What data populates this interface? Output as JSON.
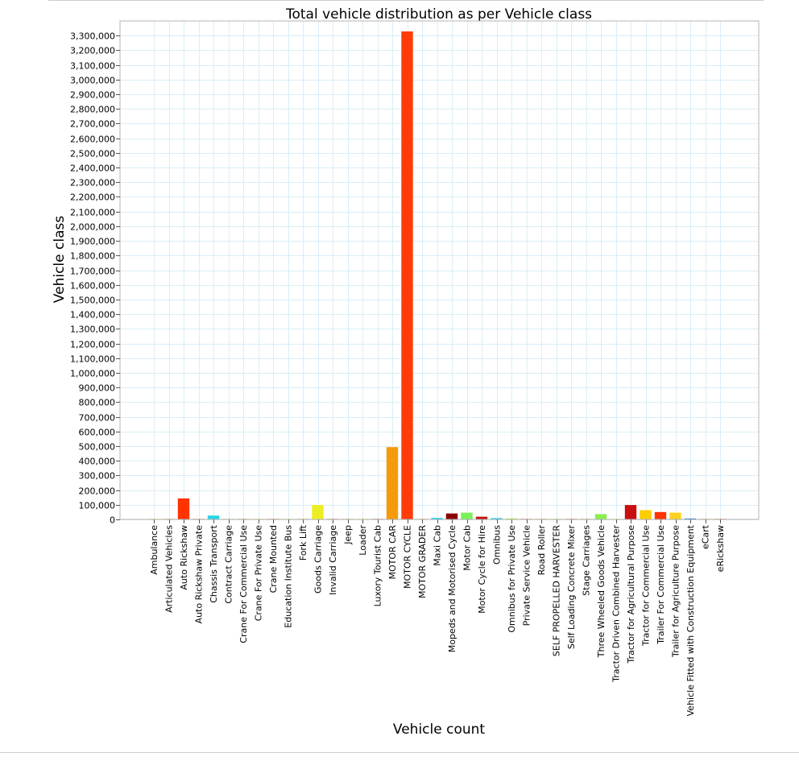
{
  "chart_data": {
    "type": "bar",
    "title": "Total vehicle distribution as per Vehicle class",
    "xlabel": "Vehicle count",
    "ylabel": "Vehicle class",
    "ylim": [
      0,
      3400000
    ],
    "ytick_step": 100000,
    "grid": true,
    "categories": [
      "Ambulance",
      "Articulated Vehicles",
      "Auto Rickshaw",
      "Auto Rickshaw Private",
      "Chassis Transport",
      "Contract Carriage",
      "Crane For Commercial Use",
      "Crane For Private Use",
      "Crane Mounted",
      "Education Institute Bus",
      "Fork Lift",
      "Goods Carriage",
      "Invalid Carriage",
      "Jeep",
      "Loader",
      "Luxory Tourist Cab",
      "MOTOR CAR",
      "MOTOR CYCLE",
      "MOTOR GRADER",
      "Maxi Cab",
      "Mopeds and Motorised Cycle",
      "Motor Cab",
      "Motor Cycle for Hire",
      "Omnibus",
      "Omnibus for Private Use",
      "Private Service Vehicle",
      "Road Roller",
      "SELF PROPELLED HARVESTER",
      "Self Loading Concrete Mixer",
      "Stage Carriages",
      "Three Wheeled Goods Vehicle",
      "Tractor Driven Combined Harvester",
      "Tractor for Agricultural Purpose",
      "Tractor for Commercial Use",
      "Trailer For Commercial Use",
      "Trailer for Agriculture Purpose",
      "Vehicle Fitted with Construction Equipment",
      "eCart",
      "eRickshaw"
    ],
    "values": [
      500,
      200,
      145000,
      1500,
      28000,
      800,
      300,
      200,
      300,
      1200,
      500,
      100000,
      300,
      1500,
      500,
      300,
      495000,
      3330000,
      200,
      12000,
      42000,
      48000,
      20000,
      11000,
      9000,
      1500,
      500,
      300,
      300,
      2000,
      38000,
      5000,
      100000,
      65000,
      52000,
      48000,
      8000,
      2000,
      1500
    ],
    "colors": [
      "#ffd700",
      "#ff8c00",
      "#ff3300",
      "#ff4500",
      "#29d4e6",
      "#a4e04c",
      "#ff7f0e",
      "#ffd700",
      "#ff4500",
      "#e6e600",
      "#ff8c00",
      "#ecee24",
      "#ff4500",
      "#ff8c00",
      "#ffd700",
      "#ff4500",
      "#f59a0c",
      "#ff3b0a",
      "#ff8c00",
      "#29d4e6",
      "#8b0000",
      "#7cf05a",
      "#c0130f",
      "#29d4e6",
      "#d4e84a",
      "#ff4500",
      "#ff8c00",
      "#ffd700",
      "#ff4500",
      "#ff8c00",
      "#8ced4c",
      "#ffd700",
      "#c80f0f",
      "#ffcc00",
      "#ff3300",
      "#ffd21e",
      "#1f6fd6",
      "#ff8c00",
      "#ff4500"
    ],
    "grid_color": "#d9eef7",
    "frame_color": "#b5b5b5"
  }
}
